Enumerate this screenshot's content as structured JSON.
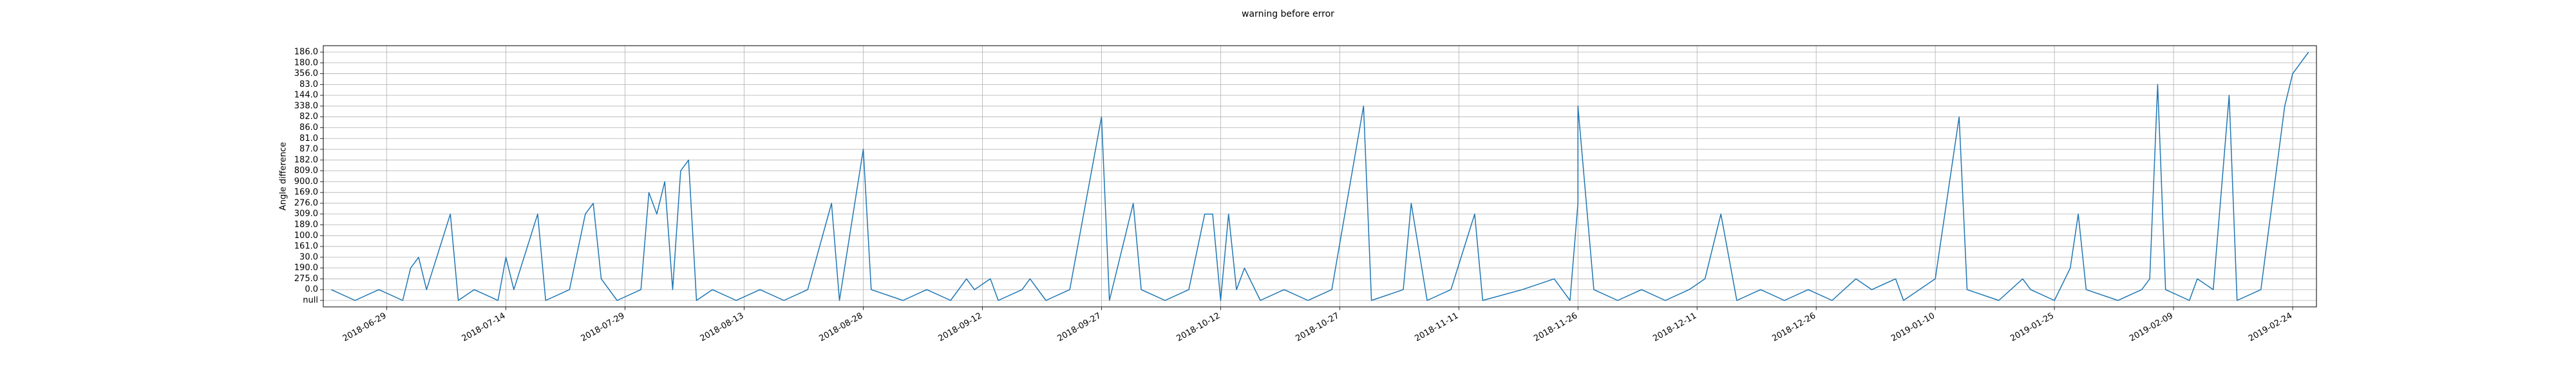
{
  "chart_data": {
    "type": "line",
    "title": "warning before error",
    "ylabel": "Angle difference",
    "ycategories": [
      "null",
      "0.0",
      "275.0",
      "190.0",
      "30.0",
      "161.0",
      "100.0",
      "189.0",
      "309.0",
      "276.0",
      "169.0",
      "900.0",
      "809.0",
      "182.0",
      "87.0",
      "81.0",
      "86.0",
      "82.0",
      "338.0",
      "144.0",
      "83.0",
      "356.0",
      "180.0",
      "186.0"
    ],
    "xlim": [
      "2018-06-21",
      "2019-02-27"
    ],
    "xticks": [
      "2018-06-29",
      "2018-07-14",
      "2018-07-29",
      "2018-08-13",
      "2018-08-28",
      "2018-09-12",
      "2018-09-27",
      "2018-10-12",
      "2018-10-27",
      "2018-11-11",
      "2018-11-26",
      "2018-12-11",
      "2018-12-26",
      "2019-01-10",
      "2019-01-25",
      "2019-02-09",
      "2019-02-24"
    ],
    "grid": true,
    "x": [
      "2018-06-22",
      "2018-06-25",
      "2018-06-28",
      "2018-07-01",
      "2018-07-02",
      "2018-07-03",
      "2018-07-04",
      "2018-07-07",
      "2018-07-08",
      "2018-07-10",
      "2018-07-13",
      "2018-07-14",
      "2018-07-15",
      "2018-07-18",
      "2018-07-19",
      "2018-07-22",
      "2018-07-24",
      "2018-07-25",
      "2018-07-26",
      "2018-07-28",
      "2018-07-31",
      "2018-08-01",
      "2018-08-02",
      "2018-08-03",
      "2018-08-04",
      "2018-08-05",
      "2018-08-06",
      "2018-08-07",
      "2018-08-09",
      "2018-08-12",
      "2018-08-15",
      "2018-08-18",
      "2018-08-21",
      "2018-08-24",
      "2018-08-25",
      "2018-08-28",
      "2018-08-29",
      "2018-09-02",
      "2018-09-05",
      "2018-09-08",
      "2018-09-10",
      "2018-09-11",
      "2018-09-13",
      "2018-09-14",
      "2018-09-17",
      "2018-09-18",
      "2018-09-20",
      "2018-09-23",
      "2018-09-27",
      "2018-09-28",
      "2018-10-01",
      "2018-10-02",
      "2018-10-05",
      "2018-10-08",
      "2018-10-10",
      "2018-10-11",
      "2018-10-12",
      "2018-10-13",
      "2018-10-14",
      "2018-10-15",
      "2018-10-17",
      "2018-10-20",
      "2018-10-23",
      "2018-10-26",
      "2018-10-30",
      "2018-10-31",
      "2018-11-04",
      "2018-11-05",
      "2018-11-07",
      "2018-11-10",
      "2018-11-13",
      "2018-11-14",
      "2018-11-19",
      "2018-11-23",
      "2018-11-25",
      "2018-11-26",
      "2018-11-26",
      "2018-11-28",
      "2018-12-01",
      "2018-12-04",
      "2018-12-07",
      "2018-12-10",
      "2018-12-12",
      "2018-12-14",
      "2018-12-16",
      "2018-12-19",
      "2018-12-22",
      "2018-12-25",
      "2018-12-28",
      "2018-12-31",
      "2019-01-02",
      "2019-01-05",
      "2019-01-06",
      "2019-01-10",
      "2019-01-13",
      "2019-01-14",
      "2019-01-18",
      "2019-01-21",
      "2019-01-22",
      "2019-01-25",
      "2019-01-27",
      "2019-01-28",
      "2019-01-29",
      "2019-02-02",
      "2019-02-05",
      "2019-02-06",
      "2019-02-07",
      "2019-02-08",
      "2019-02-11",
      "2019-02-12",
      "2019-02-14",
      "2019-02-16",
      "2019-02-17",
      "2019-02-20",
      "2019-02-23",
      "2019-02-24",
      "2019-02-25",
      "2019-02-26"
    ],
    "series": [
      {
        "color": "#1f77b4",
        "values": [
          "0.0",
          "null",
          "0.0",
          "null",
          "190.0",
          "30.0",
          "0.0",
          "309.0",
          "null",
          "0.0",
          "null",
          "30.0",
          "0.0",
          "309.0",
          "null",
          "0.0",
          "309.0",
          "276.0",
          "275.0",
          "null",
          "0.0",
          "169.0",
          "309.0",
          "900.0",
          "0.0",
          "809.0",
          "182.0",
          "null",
          "0.0",
          "null",
          "0.0",
          "null",
          "0.0",
          "276.0",
          "null",
          "87.0",
          "0.0",
          "null",
          "0.0",
          "null",
          "275.0",
          "0.0",
          "275.0",
          "null",
          "0.0",
          "275.0",
          "null",
          "0.0",
          "82.0",
          "null",
          "276.0",
          "0.0",
          "null",
          "0.0",
          "309.0",
          "309.0",
          "null",
          "309.0",
          "0.0",
          "190.0",
          "null",
          "0.0",
          "null",
          "0.0",
          "338.0",
          "null",
          "0.0",
          "276.0",
          "null",
          "0.0",
          "309.0",
          "null",
          "0.0",
          "275.0",
          "null",
          "276.0",
          "338.0",
          "0.0",
          "null",
          "0.0",
          "null",
          "0.0",
          "275.0",
          "309.0",
          "null",
          "0.0",
          "null",
          "0.0",
          "null",
          "275.0",
          "0.0",
          "275.0",
          "null",
          "275.0",
          "82.0",
          "0.0",
          "null",
          "275.0",
          "0.0",
          "null",
          "190.0",
          "309.0",
          "0.0",
          "null",
          "0.0",
          "275.0",
          "83.0",
          "0.0",
          "null",
          "275.0",
          "0.0",
          "144.0",
          "null",
          "0.0",
          "338.0",
          "356.0",
          "180.0",
          "186.0"
        ]
      }
    ]
  }
}
